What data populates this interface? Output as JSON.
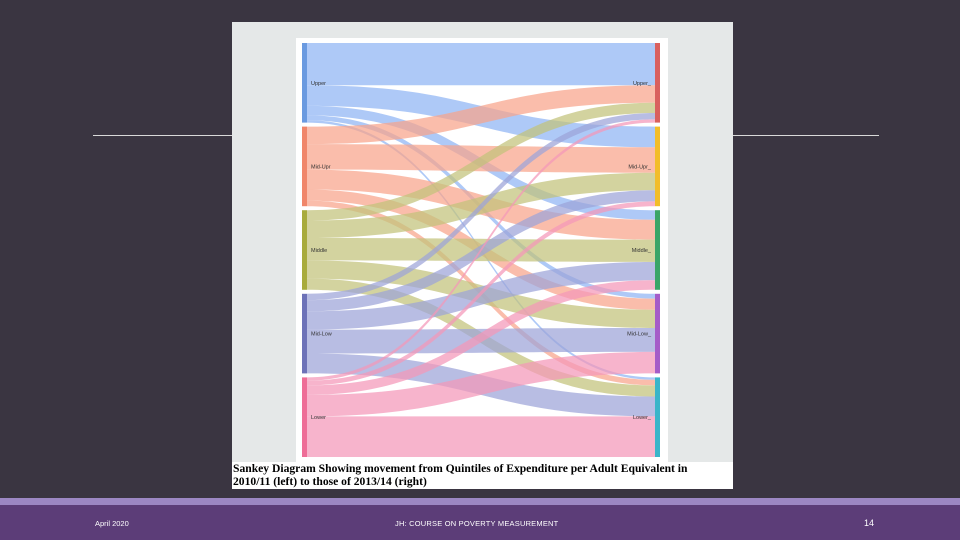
{
  "caption": "Sankey Diagram Showing movement from Quintiles of Expenditure per Adult Equivalent in\n2010/11 (left) to those of 2013/14 (right)",
  "footer": {
    "date": "April 2020",
    "course": "JH: COURSE ON POVERTY MEASUREMENT",
    "page": "14"
  },
  "sankey": {
    "left_nodes": [
      {
        "label": "Upper",
        "color": "#6a9ae0"
      },
      {
        "label": "Mid-Upr",
        "color": "#f0866a"
      },
      {
        "label": "Middle",
        "color": "#a8ab3c"
      },
      {
        "label": "Mid-Low",
        "color": "#6d72b8"
      },
      {
        "label": "Lower",
        "color": "#ee6d97"
      }
    ],
    "right_nodes": [
      {
        "label": "Upper_",
        "color": "#d9605e"
      },
      {
        "label": "Mid-Upr_",
        "color": "#f2bd2a"
      },
      {
        "label": "Middle_",
        "color": "#3aa568"
      },
      {
        "label": "Mid-Low_",
        "color": "#a55cc8"
      },
      {
        "label": "Lower_",
        "color": "#3ab5c9"
      }
    ],
    "link_colors": [
      "#8fb4f4",
      "#f8a38b",
      "#c2c27a",
      "#9da4d8",
      "#f497b8"
    ],
    "flows": [
      [
        53,
        26,
        12,
        6,
        3
      ],
      [
        22,
        32,
        25,
        14,
        7
      ],
      [
        13,
        22,
        28,
        23,
        14
      ],
      [
        8,
        14,
        23,
        30,
        25
      ],
      [
        4,
        6,
        12,
        27,
        51
      ]
    ]
  }
}
